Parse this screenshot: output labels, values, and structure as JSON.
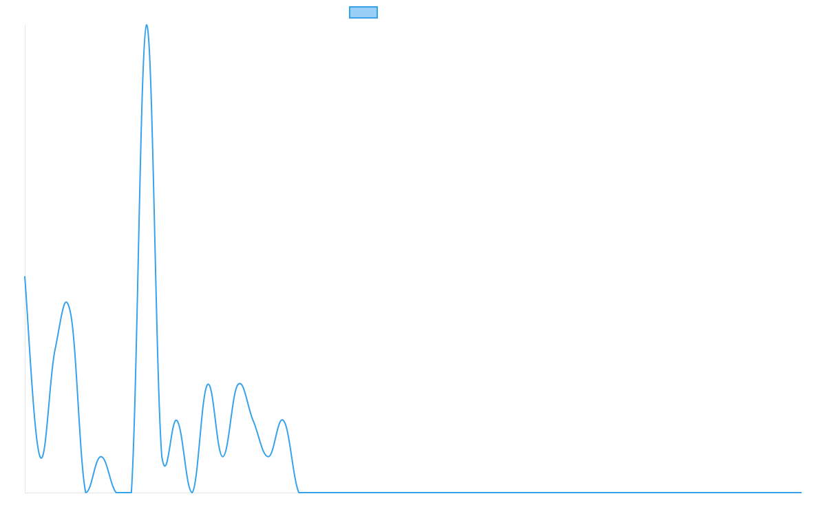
{
  "chart_data": {
    "type": "line",
    "title": "",
    "xlabel": "",
    "ylabel": "",
    "x": [
      0,
      1,
      2,
      3,
      4,
      5,
      6,
      7,
      8,
      9,
      10,
      11,
      12,
      13,
      14,
      15,
      16,
      17,
      18,
      19,
      20,
      21,
      22,
      23,
      24,
      25,
      26,
      27,
      28,
      29,
      30,
      31,
      32,
      33,
      34,
      35,
      36,
      37,
      38,
      39,
      40,
      41,
      42,
      43,
      44,
      45,
      46,
      47,
      48,
      49,
      50,
      51
    ],
    "series": [
      {
        "name": "",
        "values": [
          6,
          1,
          4,
          5,
          0,
          1,
          0,
          0,
          13,
          1,
          2,
          0,
          3,
          1,
          3,
          2,
          1,
          2,
          0,
          0,
          0,
          0,
          0,
          0,
          0,
          0,
          0,
          0,
          0,
          0,
          0,
          0,
          0,
          0,
          0,
          0,
          0,
          0,
          0,
          0,
          0,
          0,
          0,
          0,
          0,
          0,
          0,
          0,
          0,
          0,
          0,
          0
        ]
      }
    ],
    "ylim": [
      0,
      13
    ],
    "grid": false,
    "legend": "top-center",
    "colors": {
      "line": "#36a2eb",
      "legend_fill": "#9ad0f5"
    }
  }
}
